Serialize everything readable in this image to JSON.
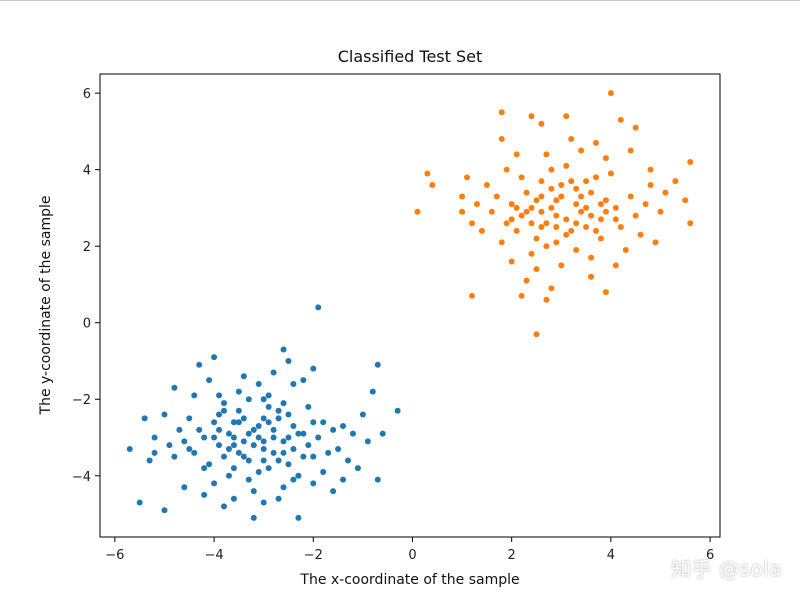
{
  "chart_data": {
    "type": "scatter",
    "title": "Classified Test Set",
    "xlabel": "The x-coordinate of the sample",
    "ylabel": "The y-coordinate of the sample",
    "xlim": [
      -6.3,
      6.2
    ],
    "ylim": [
      -5.6,
      6.5
    ],
    "xticks": [
      -6,
      -4,
      -2,
      0,
      2,
      4,
      6
    ],
    "yticks": [
      -4,
      -2,
      0,
      2,
      4,
      6
    ],
    "xtick_labels": [
      "−6",
      "−4",
      "−2",
      "0",
      "2",
      "4",
      "6"
    ],
    "ytick_labels": [
      "−4",
      "−2",
      "0",
      "2",
      "4",
      "6"
    ],
    "grid": false,
    "series": [
      {
        "color": "#1f77b4",
        "points": [
          [
            -3.1,
            -3.0
          ],
          [
            -3.5,
            -2.6
          ],
          [
            -2.8,
            -3.4
          ],
          [
            -3.9,
            -3.2
          ],
          [
            -2.4,
            -2.7
          ],
          [
            -3.3,
            -3.6
          ],
          [
            -2.9,
            -2.2
          ],
          [
            -3.7,
            -2.9
          ],
          [
            -2.6,
            -3.1
          ],
          [
            -3.0,
            -2.5
          ],
          [
            -4.2,
            -3.0
          ],
          [
            -2.1,
            -3.2
          ],
          [
            -3.6,
            -3.8
          ],
          [
            -2.7,
            -2.5
          ],
          [
            -3.4,
            -3.1
          ],
          [
            -3.2,
            -2.8
          ],
          [
            -2.5,
            -3.7
          ],
          [
            -4.0,
            -2.6
          ],
          [
            -3.8,
            -3.5
          ],
          [
            -2.3,
            -2.9
          ],
          [
            -3.0,
            -3.3
          ],
          [
            -2.9,
            -3.8
          ],
          [
            -3.5,
            -2.3
          ],
          [
            -4.4,
            -3.4
          ],
          [
            -2.0,
            -2.6
          ],
          [
            -3.3,
            -4.1
          ],
          [
            -2.6,
            -2.1
          ],
          [
            -3.9,
            -2.4
          ],
          [
            -4.1,
            -3.7
          ],
          [
            -2.2,
            -3.5
          ],
          [
            -3.6,
            -3.2
          ],
          [
            -2.8,
            -2.8
          ],
          [
            -3.1,
            -3.9
          ],
          [
            -3.4,
            -2.5
          ],
          [
            -2.4,
            -3.3
          ],
          [
            -4.3,
            -2.8
          ],
          [
            -1.9,
            -3.0
          ],
          [
            -3.7,
            -4.0
          ],
          [
            -2.7,
            -3.6
          ],
          [
            -3.0,
            -2.0
          ],
          [
            -3.8,
            -2.1
          ],
          [
            -2.5,
            -2.4
          ],
          [
            -4.6,
            -3.1
          ],
          [
            -1.7,
            -3.4
          ],
          [
            -3.2,
            -4.4
          ],
          [
            -2.9,
            -1.9
          ],
          [
            -4.0,
            -4.2
          ],
          [
            -2.1,
            -2.2
          ],
          [
            -3.5,
            -1.8
          ],
          [
            -1.8,
            -3.9
          ],
          [
            -4.5,
            -2.5
          ],
          [
            -2.6,
            -4.3
          ],
          [
            -3.3,
            -2.0
          ],
          [
            -4.8,
            -3.5
          ],
          [
            -1.6,
            -2.8
          ],
          [
            -3.9,
            -1.9
          ],
          [
            -2.3,
            -4.0
          ],
          [
            -4.2,
            -4.5
          ],
          [
            -1.5,
            -3.3
          ],
          [
            -3.1,
            -1.6
          ],
          [
            -2.0,
            -4.2
          ],
          [
            -4.7,
            -2.8
          ],
          [
            -3.6,
            -4.6
          ],
          [
            -2.4,
            -1.6
          ],
          [
            -4.9,
            -3.2
          ],
          [
            -1.4,
            -2.7
          ],
          [
            -3.0,
            -4.7
          ],
          [
            -2.8,
            -1.3
          ],
          [
            -4.4,
            -1.9
          ],
          [
            -1.6,
            -4.4
          ],
          [
            -5.0,
            -2.4
          ],
          [
            -2.2,
            -1.5
          ],
          [
            -3.4,
            -1.4
          ],
          [
            -1.3,
            -3.6
          ],
          [
            -4.1,
            -1.5
          ],
          [
            -2.7,
            -4.6
          ],
          [
            -5.2,
            -3.0
          ],
          [
            -1.2,
            -2.9
          ],
          [
            -3.8,
            -4.8
          ],
          [
            -2.5,
            -1.0
          ],
          [
            -4.6,
            -4.3
          ],
          [
            -1.1,
            -3.8
          ],
          [
            -5.3,
            -3.6
          ],
          [
            -2.0,
            -1.2
          ],
          [
            -3.2,
            -5.1
          ],
          [
            -1.0,
            -2.4
          ],
          [
            -4.3,
            -1.1
          ],
          [
            -2.3,
            -5.1
          ],
          [
            -5.4,
            -2.5
          ],
          [
            -0.9,
            -3.1
          ],
          [
            -4.0,
            -0.9
          ],
          [
            -2.6,
            -0.7
          ],
          [
            -5.7,
            -3.3
          ],
          [
            -0.6,
            -2.9
          ],
          [
            -5.5,
            -4.7
          ],
          [
            -0.7,
            -1.1
          ],
          [
            -1.9,
            0.4
          ],
          [
            -5.0,
            -4.9
          ],
          [
            -0.3,
            -2.3
          ],
          [
            -0.7,
            -4.1
          ],
          [
            -5.2,
            -3.4
          ],
          [
            -0.8,
            -1.8
          ],
          [
            -4.8,
            -1.7
          ],
          [
            -1.4,
            -4.1
          ],
          [
            -3.6,
            -3.0
          ],
          [
            -3.0,
            -3.1
          ],
          [
            -2.8,
            -3.0
          ],
          [
            -3.3,
            -2.9
          ],
          [
            -3.7,
            -3.3
          ],
          [
            -2.5,
            -3.0
          ],
          [
            -3.1,
            -2.7
          ],
          [
            -3.5,
            -3.4
          ],
          [
            -2.9,
            -2.6
          ],
          [
            -4.0,
            -3.0
          ],
          [
            -2.2,
            -2.9
          ],
          [
            -3.4,
            -3.5
          ],
          [
            -3.9,
            -2.8
          ],
          [
            -2.6,
            -3.4
          ],
          [
            -3.2,
            -3.2
          ],
          [
            -2.7,
            -2.3
          ],
          [
            -4.2,
            -3.8
          ],
          [
            -2.0,
            -3.5
          ],
          [
            -3.8,
            -2.3
          ],
          [
            -2.4,
            -4.1
          ],
          [
            -4.5,
            -3.3
          ],
          [
            -1.8,
            -2.6
          ],
          [
            -3.0,
            -3.6
          ],
          [
            -3.6,
            -2.6
          ]
        ]
      },
      {
        "color": "#ff7f0e",
        "points": [
          [
            2.9,
            2.8
          ],
          [
            3.3,
            3.1
          ],
          [
            2.6,
            2.5
          ],
          [
            3.6,
            3.4
          ],
          [
            2.4,
            3.0
          ],
          [
            3.1,
            2.3
          ],
          [
            2.8,
            3.5
          ],
          [
            3.8,
            2.7
          ],
          [
            2.5,
            2.2
          ],
          [
            3.4,
            2.9
          ],
          [
            2.2,
            2.8
          ],
          [
            3.0,
            3.3
          ],
          [
            3.9,
            3.2
          ],
          [
            2.7,
            2.0
          ],
          [
            3.5,
            2.5
          ],
          [
            2.3,
            3.4
          ],
          [
            4.1,
            3.0
          ],
          [
            2.1,
            2.4
          ],
          [
            3.2,
            3.7
          ],
          [
            2.9,
            2.1
          ],
          [
            3.7,
            3.8
          ],
          [
            2.0,
            3.1
          ],
          [
            4.2,
            2.5
          ],
          [
            2.6,
            3.7
          ],
          [
            3.3,
            1.9
          ],
          [
            4.4,
            3.3
          ],
          [
            1.9,
            2.6
          ],
          [
            3.1,
            4.1
          ],
          [
            2.4,
            1.8
          ],
          [
            3.8,
            2.2
          ],
          [
            1.7,
            3.3
          ],
          [
            4.5,
            2.8
          ],
          [
            2.8,
            4.0
          ],
          [
            3.6,
            1.7
          ],
          [
            1.8,
            2.1
          ],
          [
            4.0,
            3.9
          ],
          [
            2.2,
            3.8
          ],
          [
            4.7,
            3.1
          ],
          [
            3.0,
            1.5
          ],
          [
            1.6,
            2.9
          ],
          [
            3.9,
            4.3
          ],
          [
            2.5,
            1.4
          ],
          [
            4.6,
            2.3
          ],
          [
            1.5,
            3.6
          ],
          [
            3.4,
            4.5
          ],
          [
            2.0,
            1.6
          ],
          [
            4.8,
            3.6
          ],
          [
            2.7,
            4.4
          ],
          [
            4.3,
            1.9
          ],
          [
            1.4,
            2.4
          ],
          [
            3.7,
            4.7
          ],
          [
            2.3,
            1.1
          ],
          [
            5.0,
            2.9
          ],
          [
            1.9,
            4.0
          ],
          [
            4.1,
            1.5
          ],
          [
            1.3,
            3.1
          ],
          [
            3.2,
            4.8
          ],
          [
            2.8,
            0.9
          ],
          [
            5.1,
            3.4
          ],
          [
            1.2,
            2.6
          ],
          [
            4.4,
            4.5
          ],
          [
            2.1,
            4.4
          ],
          [
            3.6,
            1.2
          ],
          [
            1.1,
            3.8
          ],
          [
            4.9,
            2.1
          ],
          [
            2.6,
            5.2
          ],
          [
            3.9,
            0.8
          ],
          [
            1.0,
            2.9
          ],
          [
            5.3,
            3.7
          ],
          [
            1.8,
            5.5
          ],
          [
            2.7,
            0.6
          ],
          [
            4.2,
            5.3
          ],
          [
            5.5,
            3.2
          ],
          [
            1.0,
            3.3
          ],
          [
            2.2,
            0.7
          ],
          [
            4.0,
            6.0
          ],
          [
            3.1,
            5.4
          ],
          [
            5.6,
            4.2
          ],
          [
            0.3,
            3.9
          ],
          [
            0.4,
            3.6
          ],
          [
            1.2,
            0.7
          ],
          [
            5.6,
            2.6
          ],
          [
            0.1,
            2.9
          ],
          [
            2.5,
            -0.3
          ],
          [
            4.5,
            5.1
          ],
          [
            2.4,
            5.4
          ],
          [
            1.8,
            4.8
          ],
          [
            4.8,
            4.0
          ],
          [
            3.3,
            2.6
          ],
          [
            2.9,
            3.2
          ],
          [
            3.5,
            3.0
          ],
          [
            2.6,
            2.9
          ],
          [
            3.1,
            2.7
          ],
          [
            3.8,
            3.1
          ],
          [
            2.4,
            2.6
          ],
          [
            3.2,
            2.4
          ],
          [
            2.8,
            3.0
          ],
          [
            3.6,
            2.8
          ],
          [
            2.3,
            2.9
          ],
          [
            3.4,
            3.3
          ],
          [
            2.9,
            2.5
          ],
          [
            3.7,
            2.4
          ],
          [
            2.5,
            3.2
          ],
          [
            3.0,
            3.6
          ],
          [
            3.9,
            2.9
          ],
          [
            2.1,
            3.0
          ],
          [
            3.3,
            3.5
          ],
          [
            2.7,
            2.6
          ],
          [
            4.1,
            2.7
          ],
          [
            2.0,
            2.7
          ],
          [
            3.5,
            3.7
          ],
          [
            2.6,
            3.3
          ]
        ]
      }
    ]
  },
  "watermark": "知乎 @sola"
}
